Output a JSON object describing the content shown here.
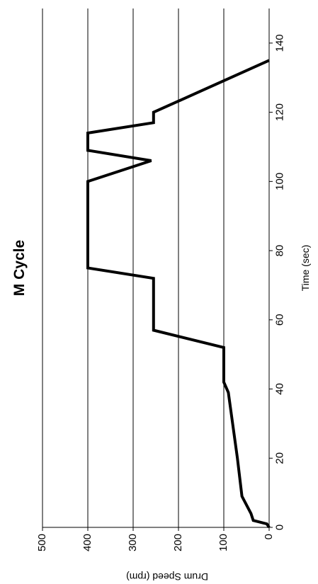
{
  "chart_data": {
    "type": "line",
    "title": "M Cycle",
    "xlabel": "Time (sec)",
    "ylabel": "Drum Speed (rpm)",
    "xlim": [
      0,
      150
    ],
    "ylim": [
      0,
      500
    ],
    "x_ticks": [
      "0",
      "20",
      "40",
      "60",
      "80",
      "100",
      "120",
      "140"
    ],
    "y_ticks": [
      "0",
      "100",
      "200",
      "300",
      "400",
      "500"
    ],
    "grid": "horizontal at each y tick",
    "orientation": "rotated 90 degrees clockwise",
    "series": [
      {
        "color": "#000000",
        "x": [
          0,
          1,
          2,
          4,
          9,
          20,
          39,
          42,
          52,
          57,
          72,
          75,
          100,
          106,
          109,
          114,
          117,
          120,
          135
        ],
        "y": [
          0,
          5,
          35,
          40,
          60,
          70,
          90,
          100,
          100,
          255,
          255,
          400,
          400,
          260,
          400,
          400,
          255,
          255,
          0
        ]
      }
    ]
  }
}
